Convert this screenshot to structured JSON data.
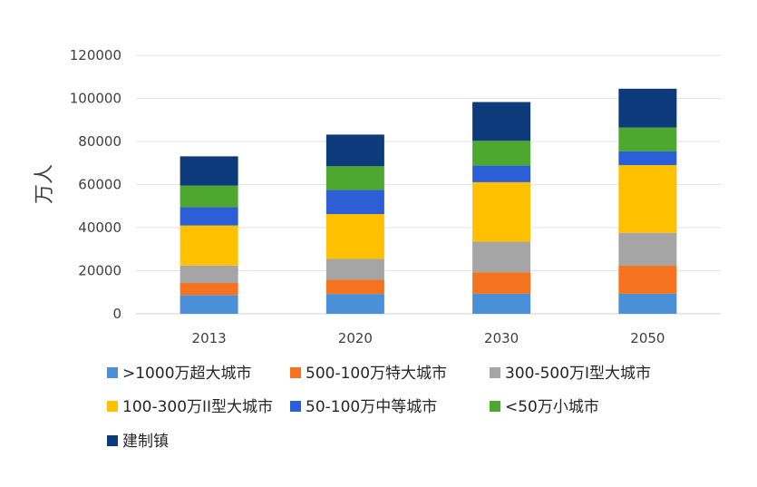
{
  "chart_data": {
    "type": "bar",
    "stacked": true,
    "categories": [
      "2013",
      "2020",
      "2030",
      "2050"
    ],
    "ylabel": "万人",
    "ylim": [
      0,
      120000
    ],
    "yticks": [
      "0",
      "20000",
      "40000",
      "60000",
      "80000",
      "100000",
      "120000"
    ],
    "grid": true,
    "legend_position": "bottom",
    "series": [
      {
        "name": ">1000万超大城市",
        "color": "#4a90d9",
        "values": [
          8700,
          9200,
          9300,
          9300
        ]
      },
      {
        "name": "500-100万特大城市",
        "color": "#f5721f",
        "values": [
          5600,
          6600,
          10000,
          13000
        ]
      },
      {
        "name": "300-500万I型大城市",
        "color": "#a5a5a5",
        "values": [
          8100,
          9700,
          14200,
          15300
        ]
      },
      {
        "name": "100-300万II型大城市",
        "color": "#ffc000",
        "values": [
          18600,
          20800,
          27600,
          31400
        ]
      },
      {
        "name": "50-100万中等城市",
        "color": "#2c5ed6",
        "values": [
          8500,
          11200,
          7700,
          6500
        ]
      },
      {
        "name": "<50万小城市",
        "color": "#4ea72e",
        "values": [
          10000,
          11000,
          11500,
          11000
        ]
      },
      {
        "name": "建制镇",
        "color": "#0d3a7a",
        "values": [
          13600,
          14700,
          18000,
          18000
        ]
      }
    ]
  }
}
